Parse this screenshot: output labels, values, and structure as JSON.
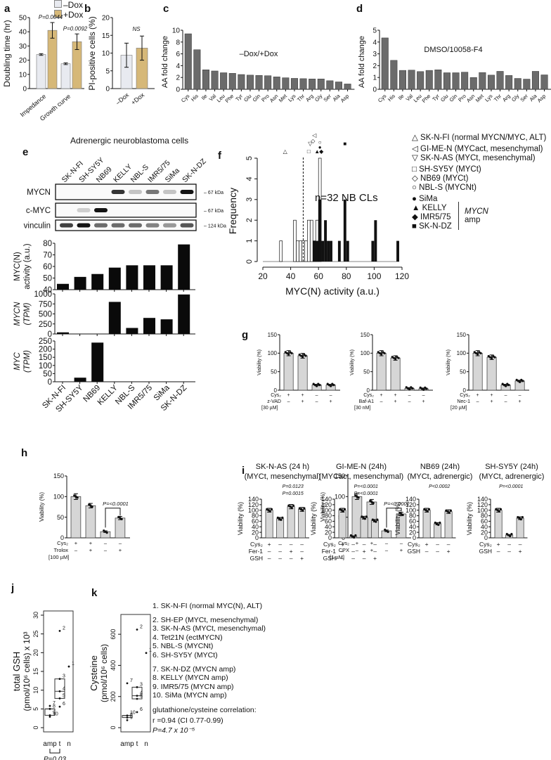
{
  "panels": {
    "a": {
      "label": "a",
      "legend": [
        "–Dox",
        "+Dox"
      ],
      "ylabel": "Doubling time (hr)",
      "pvals": [
        "P=0.0044",
        "P=0.0092"
      ]
    },
    "b": {
      "label": "b",
      "ylabel": "PI-positive cells (%)",
      "sig": "NS"
    },
    "c": {
      "label": "c",
      "ylabel": "AA fold change",
      "annotation": "–Dox/+Dox"
    },
    "d": {
      "label": "d",
      "ylabel": "AA fold change",
      "annotation": "DMSO/10058-F4"
    },
    "e": {
      "label": "e",
      "title": "Adrenergic neuroblastoma cells",
      "blots": [
        "MYCN",
        "c-MYC",
        "vinculin"
      ],
      "sizes": [
        "67 kDa",
        "67 kDa",
        "124 kDa"
      ]
    },
    "f": {
      "label": "f",
      "annotation": "n=32 NB CLs",
      "xlabel": "MYC(N) activity (a.u.)",
      "ylabel": "Frequency",
      "legend": [
        "△ SK-N-FI (normal MYCN/MYC, ALT)",
        "◁ GI-ME-N (MYCact, mesenchymal)",
        "▽ SK-N-AS (MYCt, mesenchymal)",
        "□ SH-SY5Y (MYCt)",
        "◇ NB69 (MYCt)",
        "○ NBL-S (MYCNt)",
        "● SiMa",
        "▲ KELLY",
        "◆ IMR5/75",
        "■ SK-N-DZ"
      ],
      "amp_label_1": "MYCN",
      "amp_label_2": "amp"
    },
    "g": {
      "label": "g"
    },
    "h": {
      "label": "h"
    },
    "i": {
      "label": "i"
    },
    "j": {
      "label": "j",
      "ylabel1": "total GSH",
      "ylabel2": "(pmol/10⁶ cells) x 10³",
      "pval": "P=0.03"
    },
    "k": {
      "label": "k",
      "ylabel1": "Cysteine",
      "ylabel2": "(pmol/10⁶ cells)",
      "legend": [
        "1. SK-N-FI (normal MYC(N), ALT)",
        "",
        "2. SH-EP (MYCt, mesenchymal)",
        "3. SK-N-AS (MYCt, mesenchymal)",
        "4. Tet21N (ectMYCN)",
        "5. NBL-S (MYCNt)",
        "6. SH-SY5Y (MYCt)",
        "",
        "7. SK-N-DZ (MYCN amp)",
        "8. KELLY (MYCN amp)",
        "9. IMR5/75 (MYCN amp)",
        "10. SiMa (MYCN amp)",
        "",
        "glutathione/cysteine correlation:",
        "r =0.94 (CI  0.77-0.99)",
        "P=4.7 x 10⁻⁵"
      ]
    }
  },
  "chart_data": [
    {
      "id": "a",
      "type": "bar",
      "title": "",
      "ylabel": "Doubling time (hr)",
      "ylim": [
        0,
        50
      ],
      "categories": [
        "Impedance",
        "Growth curve"
      ],
      "series": [
        {
          "name": "–Dox",
          "values": [
            24,
            17.5
          ],
          "color": "#e8eaf0"
        },
        {
          "name": "+Dox",
          "values": [
            41,
            33
          ],
          "color": "#d6b878"
        }
      ],
      "annotations": [
        "P=0.0044",
        "P=0.0092"
      ]
    },
    {
      "id": "b",
      "type": "bar",
      "ylabel": "PI-positive cells (%)",
      "ylim": [
        0,
        20
      ],
      "categories": [
        "–Dox",
        "+Dox"
      ],
      "values": [
        9.4,
        11.4
      ],
      "annotations": [
        "NS"
      ]
    },
    {
      "id": "c",
      "type": "bar",
      "ylabel": "AA fold change",
      "ylim": [
        0,
        10
      ],
      "categories": [
        "Cys",
        "His",
        "Ile",
        "Val",
        "Leu",
        "Phe",
        "Tyr",
        "Glu",
        "Gln",
        "Pro",
        "Asn",
        "Met",
        "Lys",
        "Thr",
        "Arg",
        "Gly",
        "Ser",
        "Ala",
        "Asp"
      ],
      "values": [
        9.4,
        6.7,
        3.3,
        3.1,
        2.8,
        2.7,
        2.5,
        2.4,
        2.35,
        2.3,
        2.1,
        1.95,
        1.85,
        1.8,
        1.75,
        1.75,
        1.45,
        1.25,
        0.9
      ],
      "annotation": "–Dox/+Dox"
    },
    {
      "id": "d",
      "type": "bar",
      "ylabel": "AA fold change",
      "ylim": [
        0,
        5
      ],
      "categories": [
        "Cys",
        "His",
        "Ile",
        "Val",
        "Leu",
        "Phe",
        "Tyr",
        "Glu",
        "Gln",
        "Pro",
        "Asn",
        "Met",
        "Lys",
        "Thr",
        "Arg",
        "Gly",
        "Ser",
        "Ala",
        "Asp"
      ],
      "values": [
        4.35,
        2.45,
        1.6,
        1.62,
        1.5,
        1.6,
        1.65,
        1.4,
        1.4,
        1.45,
        1.0,
        1.42,
        1.2,
        1.52,
        1.17,
        0.92,
        0.86,
        1.52,
        1.22
      ],
      "annotation": "DMSO/10058-F4"
    },
    {
      "id": "e-activity",
      "type": "bar",
      "ylabel": "MYC(N) activity (a.u.)",
      "ylim": [
        40,
        80
      ],
      "categories": [
        "SK-N-FI",
        "SH-SY5Y",
        "NB69",
        "KELLY",
        "NBL-S",
        "IMR5/75",
        "SiMa",
        "SK-N-DZ"
      ],
      "values": [
        45,
        51,
        53.5,
        59,
        61,
        61,
        61,
        79
      ]
    },
    {
      "id": "e-mycn",
      "type": "bar",
      "ylabel": "MYCN (TPM)",
      "ylim": [
        0,
        1000
      ],
      "categories": [
        "SK-N-FI",
        "SH-SY5Y",
        "NB69",
        "KELLY",
        "NBL-S",
        "IMR5/75",
        "SiMa",
        "SK-N-DZ"
      ],
      "values": [
        40,
        0,
        0,
        800,
        150,
        400,
        365,
        985
      ]
    },
    {
      "id": "e-myc",
      "type": "bar",
      "ylabel": "MYC (TPM)",
      "ylim": [
        0,
        250
      ],
      "categories": [
        "SK-N-FI",
        "SH-SY5Y",
        "NB69",
        "KELLY",
        "NBL-S",
        "IMR5/75",
        "SiMa",
        "SK-N-DZ"
      ],
      "values": [
        0,
        25,
        240,
        0,
        0,
        0,
        0,
        0
      ]
    },
    {
      "id": "f",
      "type": "bar",
      "title": "n=32 NB CLs",
      "xlabel": "MYC(N) activity (a.u.)",
      "ylabel": "Frequency",
      "xlim": [
        20,
        120
      ],
      "ylim": [
        0,
        5
      ],
      "bins_nonamp": [
        [
          32,
          1
        ],
        [
          42,
          2
        ],
        [
          44,
          1
        ],
        [
          46,
          1
        ],
        [
          48,
          1
        ],
        [
          50,
          1
        ],
        [
          52,
          2
        ],
        [
          54,
          2
        ],
        [
          56,
          1
        ],
        [
          58,
          2
        ]
      ],
      "bins_amp": [
        [
          56,
          1
        ],
        [
          58,
          1
        ],
        [
          60,
          3
        ],
        [
          62,
          1
        ],
        [
          64,
          2
        ],
        [
          66,
          1
        ],
        [
          68,
          1
        ],
        [
          74,
          1
        ],
        [
          78,
          3
        ],
        [
          80,
          1
        ],
        [
          98,
          1
        ],
        [
          100,
          2
        ],
        [
          116,
          1
        ]
      ],
      "threshold": 49
    },
    {
      "id": "g1",
      "type": "bar",
      "ylabel": "Viability (%)",
      "ylim": [
        0,
        150
      ],
      "values": [
        100,
        93,
        14,
        14
      ],
      "rows": [
        {
          "name": "Cys₂",
          "signs": [
            "+",
            "+",
            "–",
            "–"
          ]
        },
        {
          "name": "z-VAD",
          "signs": [
            "–",
            "+",
            "–",
            "+"
          ]
        }
      ],
      "note": "[30 µM]"
    },
    {
      "id": "g2",
      "type": "bar",
      "ylabel": "Viability (%)",
      "ylim": [
        0,
        150
      ],
      "values": [
        100,
        87,
        5,
        4
      ],
      "rows": [
        {
          "name": "Cys₂",
          "signs": [
            "+",
            "+",
            "–",
            "–"
          ]
        },
        {
          "name": "Baf-A1",
          "signs": [
            "–",
            "+",
            "–",
            "+"
          ]
        }
      ],
      "note": "[30 nM]"
    },
    {
      "id": "g3",
      "type": "bar",
      "ylabel": "Viability (%)",
      "ylim": [
        0,
        150
      ],
      "values": [
        100,
        89,
        14,
        25
      ],
      "rows": [
        {
          "name": "Cys₂",
          "signs": [
            "+",
            "+",
            "–",
            "–"
          ]
        },
        {
          "name": "Nec-1",
          "signs": [
            "–",
            "+",
            "–",
            "+"
          ]
        }
      ],
      "note": "[20 µM]"
    },
    {
      "id": "h1",
      "type": "bar",
      "ylabel": "Viability (%)",
      "ylim": [
        0,
        150
      ],
      "values": [
        100,
        78,
        15,
        48
      ],
      "rows": [
        {
          "name": "Cys₂",
          "signs": [
            "+",
            "+",
            "–",
            "–"
          ]
        },
        {
          "name": "Trolox",
          "signs": [
            "–",
            "+",
            "–",
            "+"
          ]
        }
      ],
      "note": "[100 µM]",
      "pval": "P=<0.0001"
    },
    {
      "id": "h2",
      "type": "bar",
      "ylabel": "Viability (%)",
      "ylim": [
        0,
        150
      ],
      "values": [
        100,
        87,
        17,
        58
      ],
      "rows": [
        {
          "name": "Cys₂",
          "signs": [
            "+",
            "+",
            "–",
            "–"
          ]
        },
        {
          "name": "CPX",
          "signs": [
            "–",
            "+",
            "–",
            "+"
          ]
        }
      ],
      "note": "[1 µM]",
      "pval": "P=<0.0001"
    },
    {
      "id": "i1",
      "type": "bar",
      "title": "SK-N-AS (24 h)",
      "subtitle": "(MYCt, mesenchymal)",
      "ylabel": "Viability (%)",
      "ylim": [
        0,
        140
      ],
      "values": [
        100,
        69,
        113,
        103
      ],
      "rows": [
        {
          "name": "Cys₂",
          "signs": [
            "+",
            "–",
            "–",
            "–"
          ]
        },
        {
          "name": "Fer-1",
          "signs": [
            "–",
            "–",
            "+",
            "–"
          ]
        },
        {
          "name": "GSH",
          "signs": [
            "–",
            "–",
            "–",
            "+"
          ]
        }
      ],
      "pvals": [
        "P=0.0123",
        "P=0.0015"
      ]
    },
    {
      "id": "i2",
      "type": "bar",
      "title": "GI-ME-N (24h)",
      "subtitle": "(MYCact, mesenchymal)",
      "ylabel": "Viability (%)",
      "ylim": [
        0,
        140
      ],
      "values": [
        100,
        5,
        73,
        62
      ],
      "rows": [
        {
          "name": "Cys₂",
          "signs": [
            "+",
            "–",
            "–",
            "–"
          ]
        },
        {
          "name": "Fer-1",
          "signs": [
            "–",
            "–",
            "+",
            "–"
          ]
        },
        {
          "name": "GSH",
          "signs": [
            "–",
            "–",
            "–",
            "+"
          ]
        }
      ],
      "pvals": [
        "P=<0.0001",
        "P=<0.0001"
      ]
    },
    {
      "id": "i3",
      "type": "bar",
      "title": "NB69 (24h)",
      "subtitle": "(MYCt, adrenergic)",
      "ylabel": "Viability (%)",
      "ylim": [
        0,
        140
      ],
      "values": [
        100,
        51,
        95
      ],
      "rows": [
        {
          "name": "Cys₂",
          "signs": [
            "+",
            "–",
            "–"
          ]
        },
        {
          "name": "GSH",
          "signs": [
            "–",
            "–",
            "+"
          ]
        }
      ],
      "pvals": [
        "P<0.0002"
      ]
    },
    {
      "id": "i4",
      "type": "bar",
      "title": "SH-SY5Y (24h)",
      "subtitle": "(MYCt, adrenergic)",
      "ylabel": "Viability (%)",
      "ylim": [
        0,
        140
      ],
      "values": [
        100,
        10,
        71
      ],
      "rows": [
        {
          "name": "Cys₂",
          "signs": [
            "+",
            "–",
            "–"
          ]
        },
        {
          "name": "GSH",
          "signs": [
            "–",
            "–",
            "+"
          ]
        }
      ],
      "pvals": [
        "P=<0.0001"
      ]
    },
    {
      "id": "j",
      "type": "scatter",
      "ylabel": "total GSH (pmol/10^6 cells) x 10^3",
      "ylim": [
        0,
        30
      ],
      "categories": [
        "amp",
        "t",
        "n"
      ],
      "points": [
        {
          "cat": "amp",
          "id": "7",
          "y": 5.8
        },
        {
          "cat": "amp",
          "id": "8",
          "y": 5.0
        },
        {
          "cat": "amp",
          "id": "9",
          "y": 3.3
        },
        {
          "cat": "amp",
          "id": "10",
          "y": 2.9
        },
        {
          "cat": "t",
          "id": "2",
          "y": 25.8
        },
        {
          "cat": "t",
          "id": "3",
          "y": 13.0
        },
        {
          "cat": "t",
          "id": "4",
          "y": 9.7
        },
        {
          "cat": "t",
          "id": "5",
          "y": 7.8
        },
        {
          "cat": "t",
          "id": "6",
          "y": 5.6
        },
        {
          "cat": "n",
          "id": "1",
          "y": 16.3
        }
      ],
      "annotation": "P=0.03"
    },
    {
      "id": "k",
      "type": "scatter",
      "ylabel": "Cysteine (pmol/10^6 cells)",
      "ylim": [
        0,
        700
      ],
      "categories": [
        "amp",
        "t",
        "n"
      ],
      "points": [
        {
          "cat": "amp",
          "id": "7",
          "y": 285
        },
        {
          "cat": "amp",
          "id": "10",
          "y": 78
        },
        {
          "cat": "amp",
          "id": "8",
          "y": 65
        },
        {
          "cat": "amp",
          "id": "9",
          "y": 48
        },
        {
          "cat": "t",
          "id": "2",
          "y": 630
        },
        {
          "cat": "t",
          "id": "3",
          "y": 260
        },
        {
          "cat": "t",
          "id": "4",
          "y": 205
        },
        {
          "cat": "t",
          "id": "5",
          "y": 185
        },
        {
          "cat": "t",
          "id": "6",
          "y": 100
        },
        {
          "cat": "n",
          "id": "1",
          "y": 480
        }
      ]
    }
  ]
}
